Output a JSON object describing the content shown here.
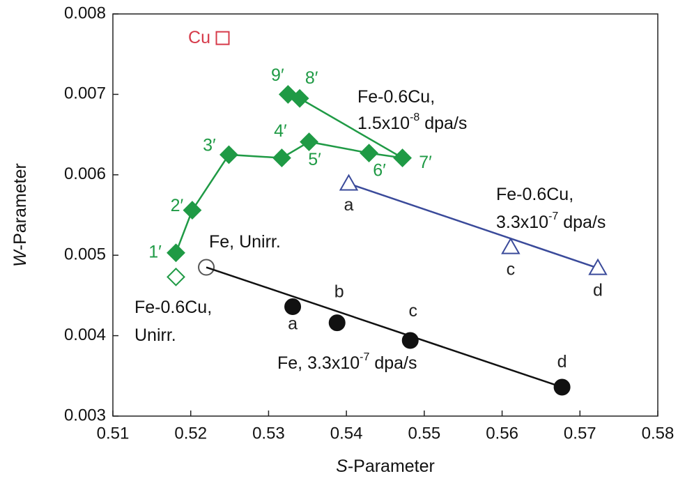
{
  "chart_data": {
    "type": "scatter",
    "xlabel": {
      "italic": "S",
      "text": "-Parameter"
    },
    "ylabel": {
      "italic": "W",
      "text": "-Parameter"
    },
    "xlim": [
      0.51,
      0.58
    ],
    "xticks": [
      0.51,
      0.52,
      0.53,
      0.54,
      0.55,
      0.56,
      0.57,
      0.58
    ],
    "ylim": [
      0.003,
      0.008
    ],
    "yticks": [
      0.003,
      0.004,
      0.005,
      0.006,
      0.007,
      0.008
    ],
    "series": [
      {
        "name": [
          {
            "text": "Fe-0.6Cu,"
          },
          {
            "text": "1.5x10",
            "sup": "-8",
            "rest": " dpa/s"
          }
        ],
        "color": "#1f9a45",
        "marker": "diamond",
        "filled": true,
        "connect": "path",
        "x": [
          0.5181,
          0.5202,
          0.5249,
          0.5317,
          0.5352,
          0.5429,
          0.5472,
          0.534,
          0.5325
        ],
        "values": [
          0.00503,
          0.00556,
          0.00625,
          0.00621,
          0.00641,
          0.00627,
          0.00621,
          0.00695,
          0.007
        ],
        "labels": [
          "1′",
          "2′",
          "3′",
          "4′",
          "5′",
          "6′",
          "7′",
          "8′",
          "9′"
        ]
      },
      {
        "name": [
          {
            "text": "Fe-0.6Cu,"
          },
          {
            "text": "Unirr."
          }
        ],
        "color": "#1f9a45",
        "marker": "diamond",
        "filled": false,
        "x": [
          0.5181
        ],
        "values": [
          0.00473
        ]
      },
      {
        "name": [
          {
            "text": "Cu"
          }
        ],
        "color": "#d63a4a",
        "marker": "square",
        "filled": false,
        "x": [
          0.5241
        ],
        "values": [
          0.0077
        ]
      },
      {
        "name": [
          {
            "text": "Fe, Unirr."
          }
        ],
        "color": "#555555",
        "marker": "circle",
        "filled": false,
        "x": [
          0.522
        ],
        "values": [
          0.00485
        ]
      },
      {
        "name": [
          {
            "text": "Fe, 3.3x10",
            "sup": "-7",
            "rest": " dpa/s"
          }
        ],
        "color": "#111111",
        "marker": "circle",
        "filled": true,
        "connect": "from-unirr",
        "x": [
          0.5331,
          0.5388,
          0.5482,
          0.5677
        ],
        "values": [
          0.00436,
          0.00416,
          0.00394,
          0.00336
        ],
        "labels": [
          "a",
          "b",
          "c",
          "d"
        ]
      },
      {
        "name": [
          {
            "text": "Fe-0.6Cu,"
          },
          {
            "text": "3.3x10",
            "sup": "-7",
            "rest": " dpa/s"
          }
        ],
        "color": "#3a4a9a",
        "marker": "triangle",
        "filled": false,
        "connect": "ends",
        "x": [
          0.5403,
          0.5611,
          0.5723
        ],
        "values": [
          0.00589,
          0.0051,
          0.00484
        ],
        "labels": [
          "a",
          "c",
          "d"
        ]
      }
    ]
  }
}
